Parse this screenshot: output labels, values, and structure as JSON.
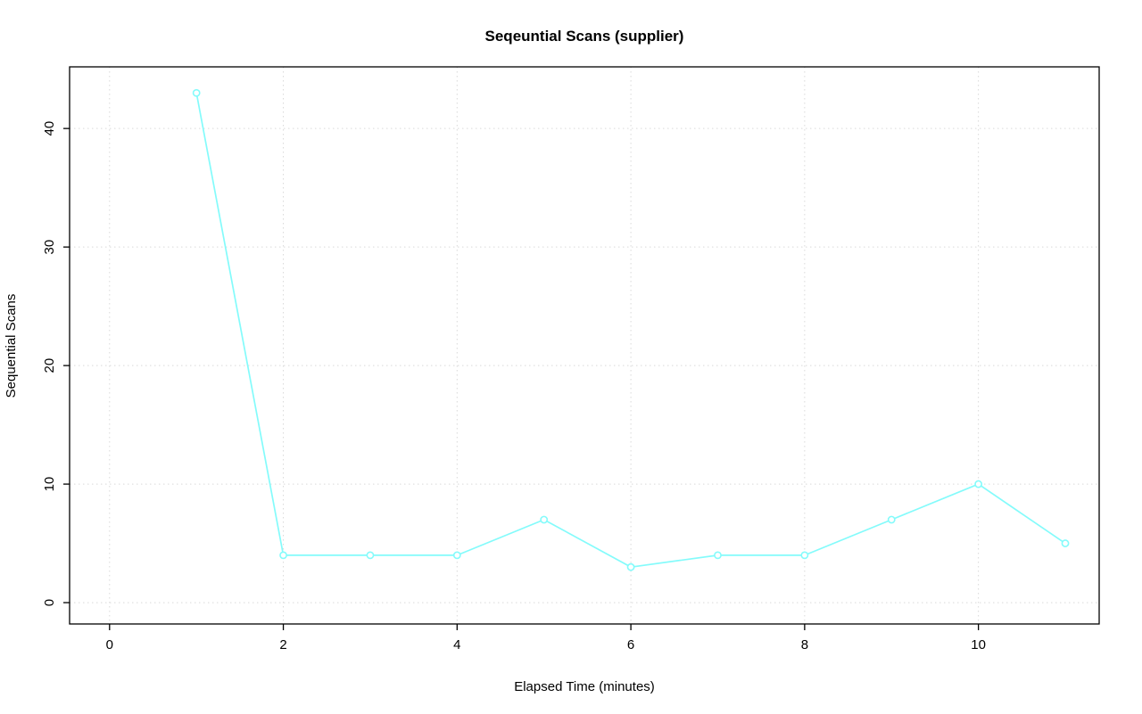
{
  "page": {
    "background": "#ffffff"
  },
  "chart_data": {
    "type": "line",
    "title": "Seqeuntial Scans (supplier)",
    "xlabel": "Elapsed Time (minutes)",
    "ylabel": "Sequential Scans",
    "x": [
      1,
      2,
      3,
      4,
      5,
      6,
      7,
      8,
      9,
      10,
      11
    ],
    "y": [
      43,
      4,
      4,
      4,
      7,
      3,
      4,
      4,
      7,
      10,
      5
    ],
    "x_ticks": [
      0,
      2,
      4,
      6,
      8,
      10
    ],
    "y_ticks": [
      0,
      10,
      20,
      30,
      40
    ],
    "xlim": [
      -0.46,
      11.39
    ],
    "ylim": [
      -1.8,
      45.2
    ],
    "grid": true,
    "grid_style": "dotted",
    "legend": "none",
    "marker": "open-circle",
    "series_color": "#84fbfb",
    "grid_color": "#d9d9d9",
    "axis_color": "#000000",
    "text_color": "#000000"
  }
}
